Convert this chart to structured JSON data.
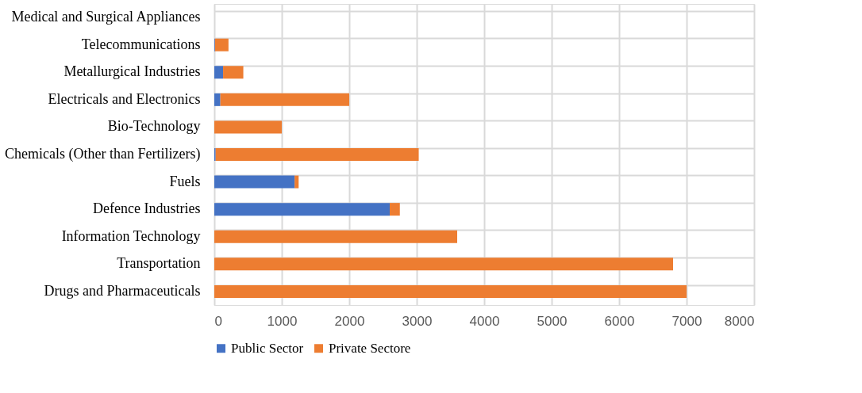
{
  "chart_data": {
    "type": "bar",
    "orientation": "horizontal",
    "stacked": true,
    "categories": [
      "Medical and Surgical Appliances",
      "Telecommunications",
      "Metallurgical Industries",
      "Electricals and Electronics",
      "Bio-Technology",
      "Chemicals (Other than Fertilizers)",
      "Fuels",
      "Defence Industries",
      "Information Technology",
      "Transportation",
      "Drugs and Pharmaceuticals"
    ],
    "series": [
      {
        "name": "Public Sector",
        "color": "#4472c4",
        "values": [
          0,
          10,
          130,
          90,
          0,
          20,
          1190,
          2600,
          0,
          0,
          0
        ]
      },
      {
        "name": "Private Sectore",
        "color": "#ed7d31",
        "values": [
          0,
          200,
          300,
          1910,
          1000,
          3010,
          60,
          150,
          3600,
          6800,
          7000
        ]
      }
    ],
    "xlim": [
      0,
      8000
    ],
    "xticks": [
      0,
      1000,
      2000,
      3000,
      4000,
      5000,
      6000,
      7000,
      8000
    ],
    "grid": true,
    "legend": "bottom"
  }
}
